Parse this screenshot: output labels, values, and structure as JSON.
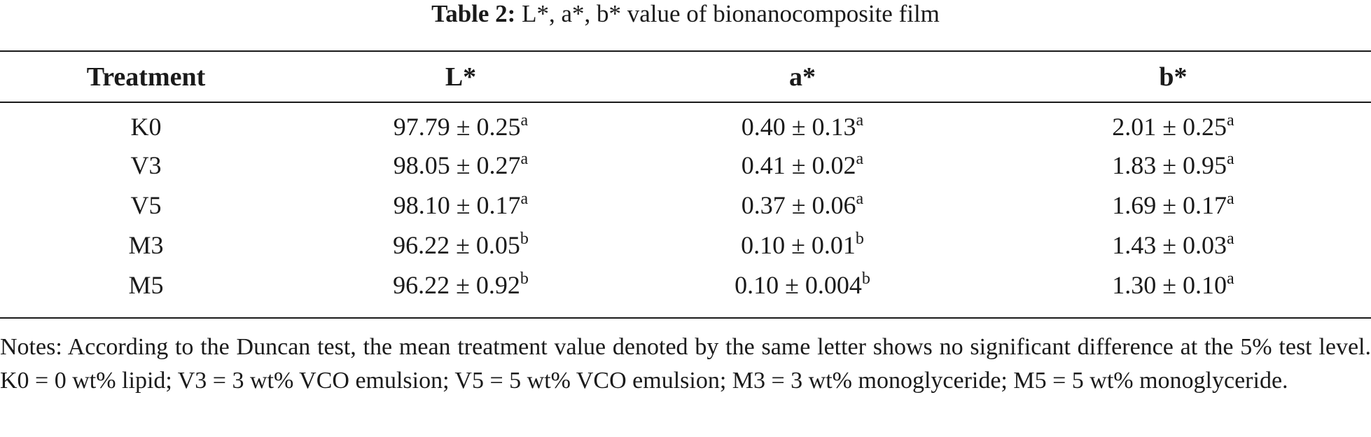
{
  "caption": {
    "label": "Table 2:",
    "text": " L*, a*, b* value of bionanocomposite film"
  },
  "table": {
    "headers": [
      "Treatment",
      "L*",
      "a*",
      "b*"
    ],
    "rows": [
      {
        "treatment": "K0",
        "L": "97.79 ± 0.25",
        "L_sup": "a",
        "a": "0.40 ± 0.13",
        "a_sup": "a",
        "b": "2.01 ± 0.25",
        "b_sup": "a"
      },
      {
        "treatment": "V3",
        "L": "98.05 ± 0.27",
        "L_sup": "a",
        "a": "0.41 ± 0.02",
        "a_sup": "a",
        "b": "1.83 ± 0.95",
        "b_sup": "a"
      },
      {
        "treatment": "V5",
        "L": "98.10 ± 0.17",
        "L_sup": "a",
        "a": "0.37 ± 0.06",
        "a_sup": "a",
        "b": "1.69 ± 0.17",
        "b_sup": "a"
      },
      {
        "treatment": "M3",
        "L": "96.22 ± 0.05",
        "L_sup": "b",
        "a": "0.10 ± 0.01",
        "a_sup": "b",
        "b": "1.43 ± 0.03",
        "b_sup": "a"
      },
      {
        "treatment": "M5",
        "L": "96.22 ± 0.92",
        "L_sup": "b",
        "a": "0.10 ± 0.004",
        "a_sup": "b",
        "b": "1.30 ± 0.10",
        "b_sup": "a"
      }
    ]
  },
  "notes": "Notes: According to the Duncan test, the mean treatment value denoted by the same letter shows no significant difference at the 5% test level. K0 = 0 wt% lipid; V3 = 3 wt% VCO emulsion; V5 = 5 wt% VCO emulsion; M3 = 3 wt% monoglyceride; M5 = 5 wt% monoglyceride."
}
